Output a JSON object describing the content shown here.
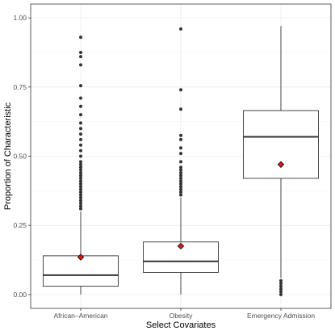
{
  "chart_data": {
    "type": "boxplot",
    "xlabel": "Select Covariates",
    "ylabel": "Proportion of Characteristic",
    "ylim": [
      -0.05,
      1.05
    ],
    "y_ticks": [
      0.0,
      0.25,
      0.5,
      0.75,
      1.0
    ],
    "y_tick_labels": [
      "0.00",
      "0.25",
      "0.50",
      "0.75",
      "1.00"
    ],
    "grid": true,
    "categories": [
      "African–American",
      "Obesity",
      "Emergency Admission"
    ],
    "boxes": [
      {
        "name": "African–American",
        "min": 0.0,
        "q1": 0.03,
        "median": 0.07,
        "q3": 0.14,
        "whisker_high": 0.3,
        "mean": 0.135,
        "outliers": [
          0.31,
          0.32,
          0.33,
          0.34,
          0.35,
          0.36,
          0.37,
          0.38,
          0.39,
          0.4,
          0.41,
          0.42,
          0.43,
          0.44,
          0.45,
          0.46,
          0.47,
          0.48,
          0.5,
          0.52,
          0.54,
          0.56,
          0.58,
          0.6,
          0.62,
          0.65,
          0.68,
          0.71,
          0.755,
          0.83,
          0.86,
          0.875,
          0.93
        ]
      },
      {
        "name": "Obesity",
        "min": 0.0,
        "q1": 0.08,
        "median": 0.12,
        "q3": 0.19,
        "whisker_high": 0.35,
        "mean": 0.175,
        "outliers": [
          0.36,
          0.37,
          0.38,
          0.39,
          0.4,
          0.41,
          0.42,
          0.43,
          0.44,
          0.45,
          0.46,
          0.48,
          0.51,
          0.53,
          0.56,
          0.575,
          0.67,
          0.74,
          0.96
        ]
      },
      {
        "name": "Emergency Admission",
        "whisker_low": 0.06,
        "q1": 0.42,
        "median": 0.57,
        "q3": 0.665,
        "max": 0.97,
        "mean": 0.47,
        "outliers": [
          0.0,
          0.01,
          0.02,
          0.03,
          0.04,
          0.05
        ]
      }
    ],
    "colors": {
      "mean_marker": "#e31a1c",
      "points": "#333333",
      "panel_border": "#333333",
      "grid": "#ebebeb"
    }
  }
}
